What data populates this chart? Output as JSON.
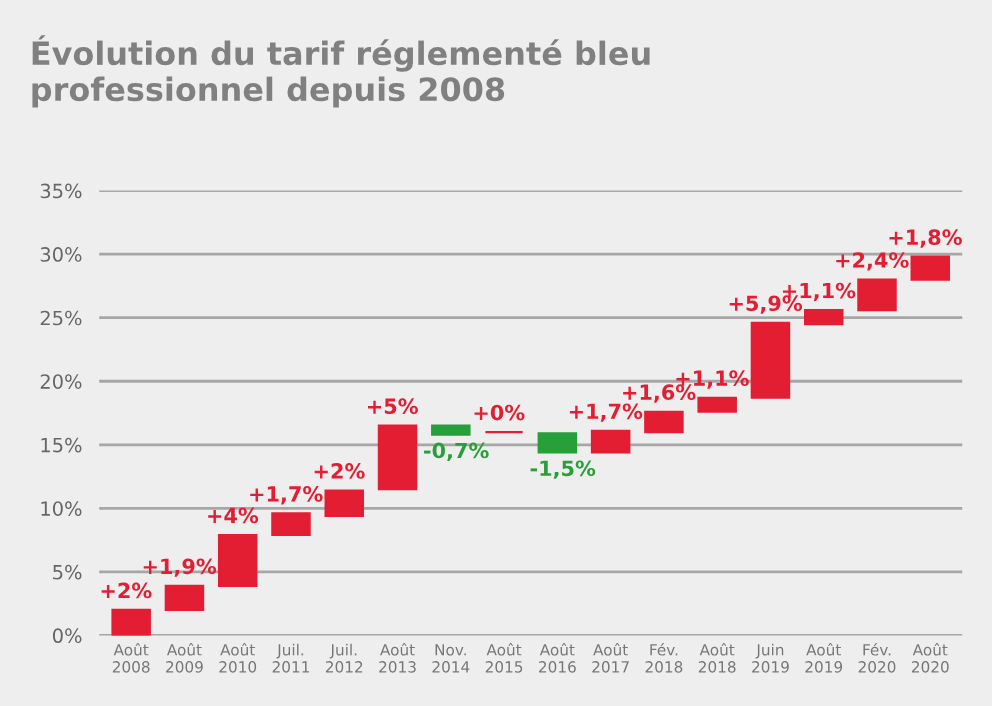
{
  "chart_data": {
    "type": "bar",
    "title": "Évolution du tarif réglementé bleu\nprofessionnel depuis 2008",
    "categories": [
      "Août\n2008",
      "Août\n2009",
      "Août\n2010",
      "Juil.\n2011",
      "Juil.\n2012",
      "Août\n2013",
      "Nov.\n2014",
      "Août\n2015",
      "Août\n2016",
      "Août\n2017",
      "Fév.\n2018",
      "Août\n2018",
      "Juin\n2019",
      "Août\n2019",
      "Fév.\n2020",
      "Août\n2020"
    ],
    "values": [
      2,
      1.9,
      4,
      1.7,
      2,
      5,
      -0.7,
      0,
      -1.5,
      1.7,
      1.6,
      1.1,
      5.9,
      1.1,
      2.4,
      1.8
    ],
    "base": [
      0,
      2.0,
      3.9,
      7.9,
      9.4,
      11.5,
      16.5,
      16.0,
      15.9,
      14.4,
      16.0,
      17.6,
      18.7,
      24.5,
      25.6,
      28.0
    ],
    "colors": [
      "#e31e33",
      "#e31e33",
      "#e31e33",
      "#e31e33",
      "#e31e33",
      "#e31e33",
      "#27a03a",
      "#e31e33",
      "#27a03a",
      "#e31e33",
      "#e31e33",
      "#e31e33",
      "#e31e33",
      "#e31e33",
      "#e31e33",
      "#e31e33"
    ],
    "value_labels": [
      "+2%",
      "+1,9%",
      "+4%",
      "+1,7%",
      "+2%",
      "+5%",
      "-0,7%",
      "+0%",
      "-1,5%",
      "+1,7%",
      "+1,6%",
      "+1,1%",
      "+5,9%",
      "+1,1%",
      "+2,4%",
      "+1,8%"
    ],
    "ylim": [
      0,
      35
    ],
    "yticks": [
      {
        "value": 0,
        "label": "0%"
      },
      {
        "value": 5,
        "label": "5%"
      },
      {
        "value": 10,
        "label": "10%"
      },
      {
        "value": 15,
        "label": "15%"
      },
      {
        "value": 20,
        "label": "20%"
      },
      {
        "value": 25,
        "label": "25%"
      },
      {
        "value": 30,
        "label": "30%"
      },
      {
        "value": 35,
        "label": "35%"
      }
    ],
    "grid": "y"
  }
}
